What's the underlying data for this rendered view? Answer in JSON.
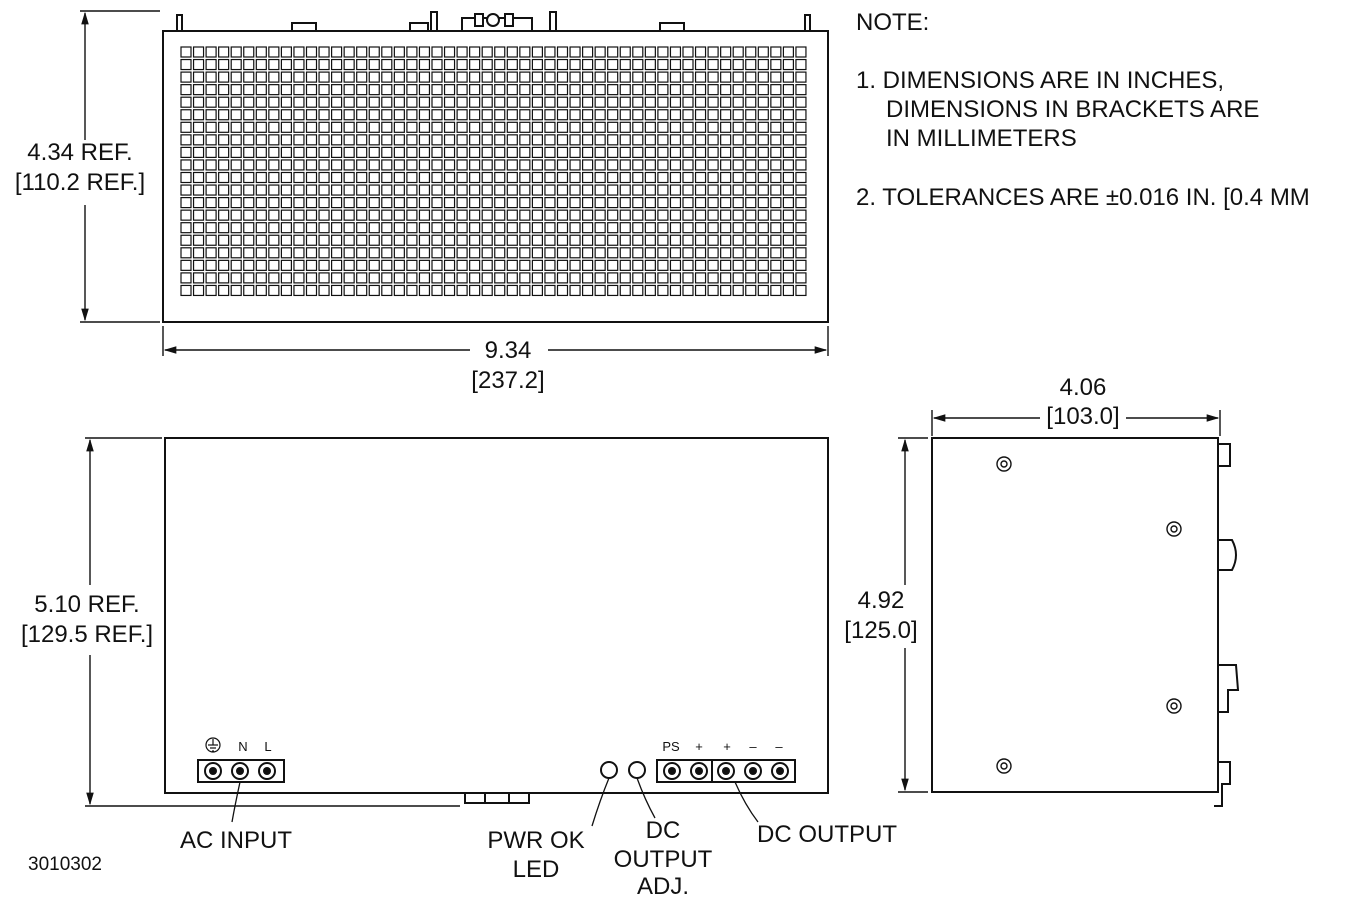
{
  "notes": {
    "heading": "NOTE:",
    "item1": [
      "1. DIMENSIONS ARE IN INCHES,",
      "DIMENSIONS IN BRACKETS ARE",
      "IN MILLIMETERS"
    ],
    "item2": "2. TOLERANCES ARE ±0.016 IN. [0.4 MM"
  },
  "dimensions": {
    "top_height": [
      "4.34 REF.",
      "[110.2 REF.]"
    ],
    "top_width": [
      "9.34",
      "[237.2]"
    ],
    "front_height": [
      "5.10 REF.",
      "[129.5 REF.]"
    ],
    "side_width": [
      "4.06",
      "[103.0]"
    ],
    "side_height": [
      "4.92",
      "[125.0]"
    ]
  },
  "terminals": {
    "ac": [
      "⏚",
      "N",
      "L"
    ],
    "dc": [
      "PS",
      "+",
      "+",
      "–",
      "–"
    ]
  },
  "callouts": {
    "ac_input": "AC INPUT",
    "pwr_ok": [
      "PWR OK",
      "LED"
    ],
    "dc_adj": [
      "DC",
      "OUTPUT",
      "ADJ."
    ],
    "dc_output": "DC OUTPUT"
  },
  "drawing_number": "3010302"
}
